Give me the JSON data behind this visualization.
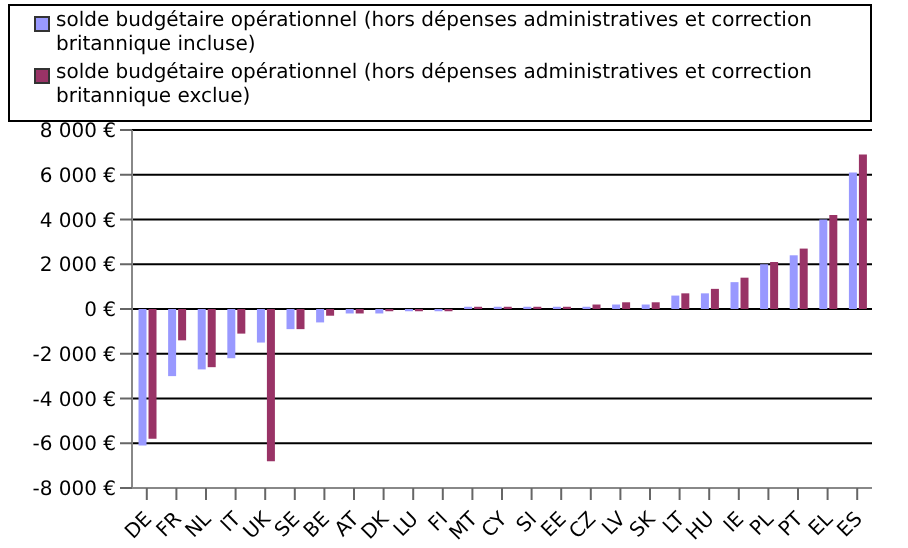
{
  "chart_data": {
    "type": "bar",
    "categories": [
      "DE",
      "FR",
      "NL",
      "IT",
      "UK",
      "SE",
      "BE",
      "AT",
      "DK",
      "LU",
      "FI",
      "MT",
      "CY",
      "SI",
      "EE",
      "CZ",
      "LV",
      "SK",
      "LT",
      "HU",
      "IE",
      "PL",
      "PT",
      "EL",
      "ES"
    ],
    "series": [
      {
        "name": "solde budgétaire opérationnel (hors dépenses administratives et correction britannique incluse)",
        "color": "#9999ff",
        "values": [
          -6100,
          -3000,
          -2700,
          -2200,
          -1500,
          -900,
          -600,
          -200,
          -200,
          -100,
          -100,
          100,
          100,
          100,
          100,
          100,
          200,
          200,
          600,
          700,
          1200,
          2000,
          2400,
          4000,
          6100
        ]
      },
      {
        "name": "solde budgétaire opérationnel (hors dépenses administratives et correction britannique exclue)",
        "color": "#993366",
        "values": [
          -5800,
          -1400,
          -2600,
          -1100,
          -6800,
          -900,
          -300,
          -200,
          -100,
          -100,
          -100,
          100,
          100,
          100,
          100,
          200,
          300,
          300,
          700,
          900,
          1400,
          2100,
          2700,
          4200,
          6900
        ]
      }
    ],
    "ylim": [
      -8000,
      8000
    ],
    "yticks": [
      {
        "value": -8000,
        "label": "-8 000 €"
      },
      {
        "value": -6000,
        "label": "-6 000 €"
      },
      {
        "value": -4000,
        "label": "-4 000 €"
      },
      {
        "value": -2000,
        "label": "-2 000 €"
      },
      {
        "value": 0,
        "label": "0 €"
      },
      {
        "value": 2000,
        "label": "2 000 €"
      },
      {
        "value": 4000,
        "label": "4 000 €"
      },
      {
        "value": 6000,
        "label": "6 000 €"
      },
      {
        "value": 8000,
        "label": "8 000 €"
      }
    ],
    "grid": "y",
    "legend": "top"
  }
}
